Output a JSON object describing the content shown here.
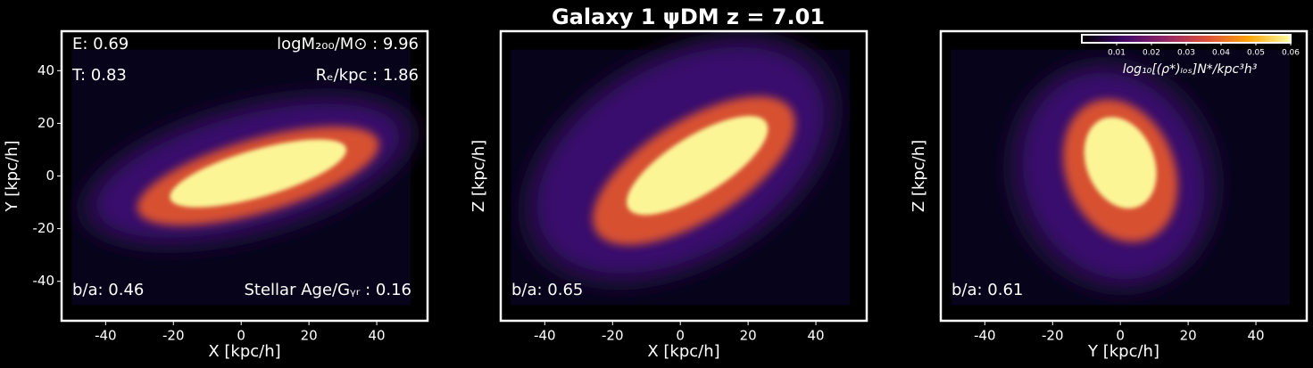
{
  "title": "Galaxy 1 ψDM  z = 7.01",
  "chart_data": [
    {
      "type": "image",
      "xlabel": "X [kpc/h]",
      "ylabel": "Y [kpc/h]",
      "xlim": [
        -53,
        55
      ],
      "ylim": [
        -55,
        55
      ],
      "xticks": [
        -40,
        -20,
        0,
        20,
        40
      ],
      "yticks": [
        -40,
        -20,
        0,
        20,
        40
      ],
      "annotations": {
        "top_left": [
          "E: 0.69",
          "T: 0.83"
        ],
        "top_right": [
          "logM₂₀₀/M⊙ : 9.96",
          "Rₑ/kpc : 1.86"
        ],
        "bottom_left": [
          "b/a: 0.46"
        ],
        "bottom_right": [
          "Stellar Age/Gᵧᵣ : 0.16"
        ]
      }
    },
    {
      "type": "image",
      "xlabel": "X [kpc/h]",
      "ylabel": "Z [kpc/h]",
      "xlim": [
        -53,
        55
      ],
      "ylim": [
        -55,
        55
      ],
      "xticks": [
        -40,
        -20,
        0,
        20,
        40
      ],
      "annotations": {
        "bottom_left": [
          "b/a: 0.65"
        ]
      }
    },
    {
      "type": "image",
      "xlabel": "Y [kpc/h]",
      "ylabel": "Z [kpc/h]",
      "xlim": [
        -53,
        55
      ],
      "ylim": [
        -55,
        55
      ],
      "xticks": [
        -40,
        -20,
        0,
        20,
        40
      ],
      "annotations": {
        "bottom_left": [
          "b/a: 0.61"
        ]
      },
      "colorbar": {
        "label": "log₁₀[(ρ*)ₗₒₛ]N*/kpc³h³",
        "lim": [
          0,
          0.06
        ],
        "ticks": [
          0.01,
          0.02,
          0.03,
          0.04,
          0.05,
          0.06
        ]
      }
    }
  ]
}
